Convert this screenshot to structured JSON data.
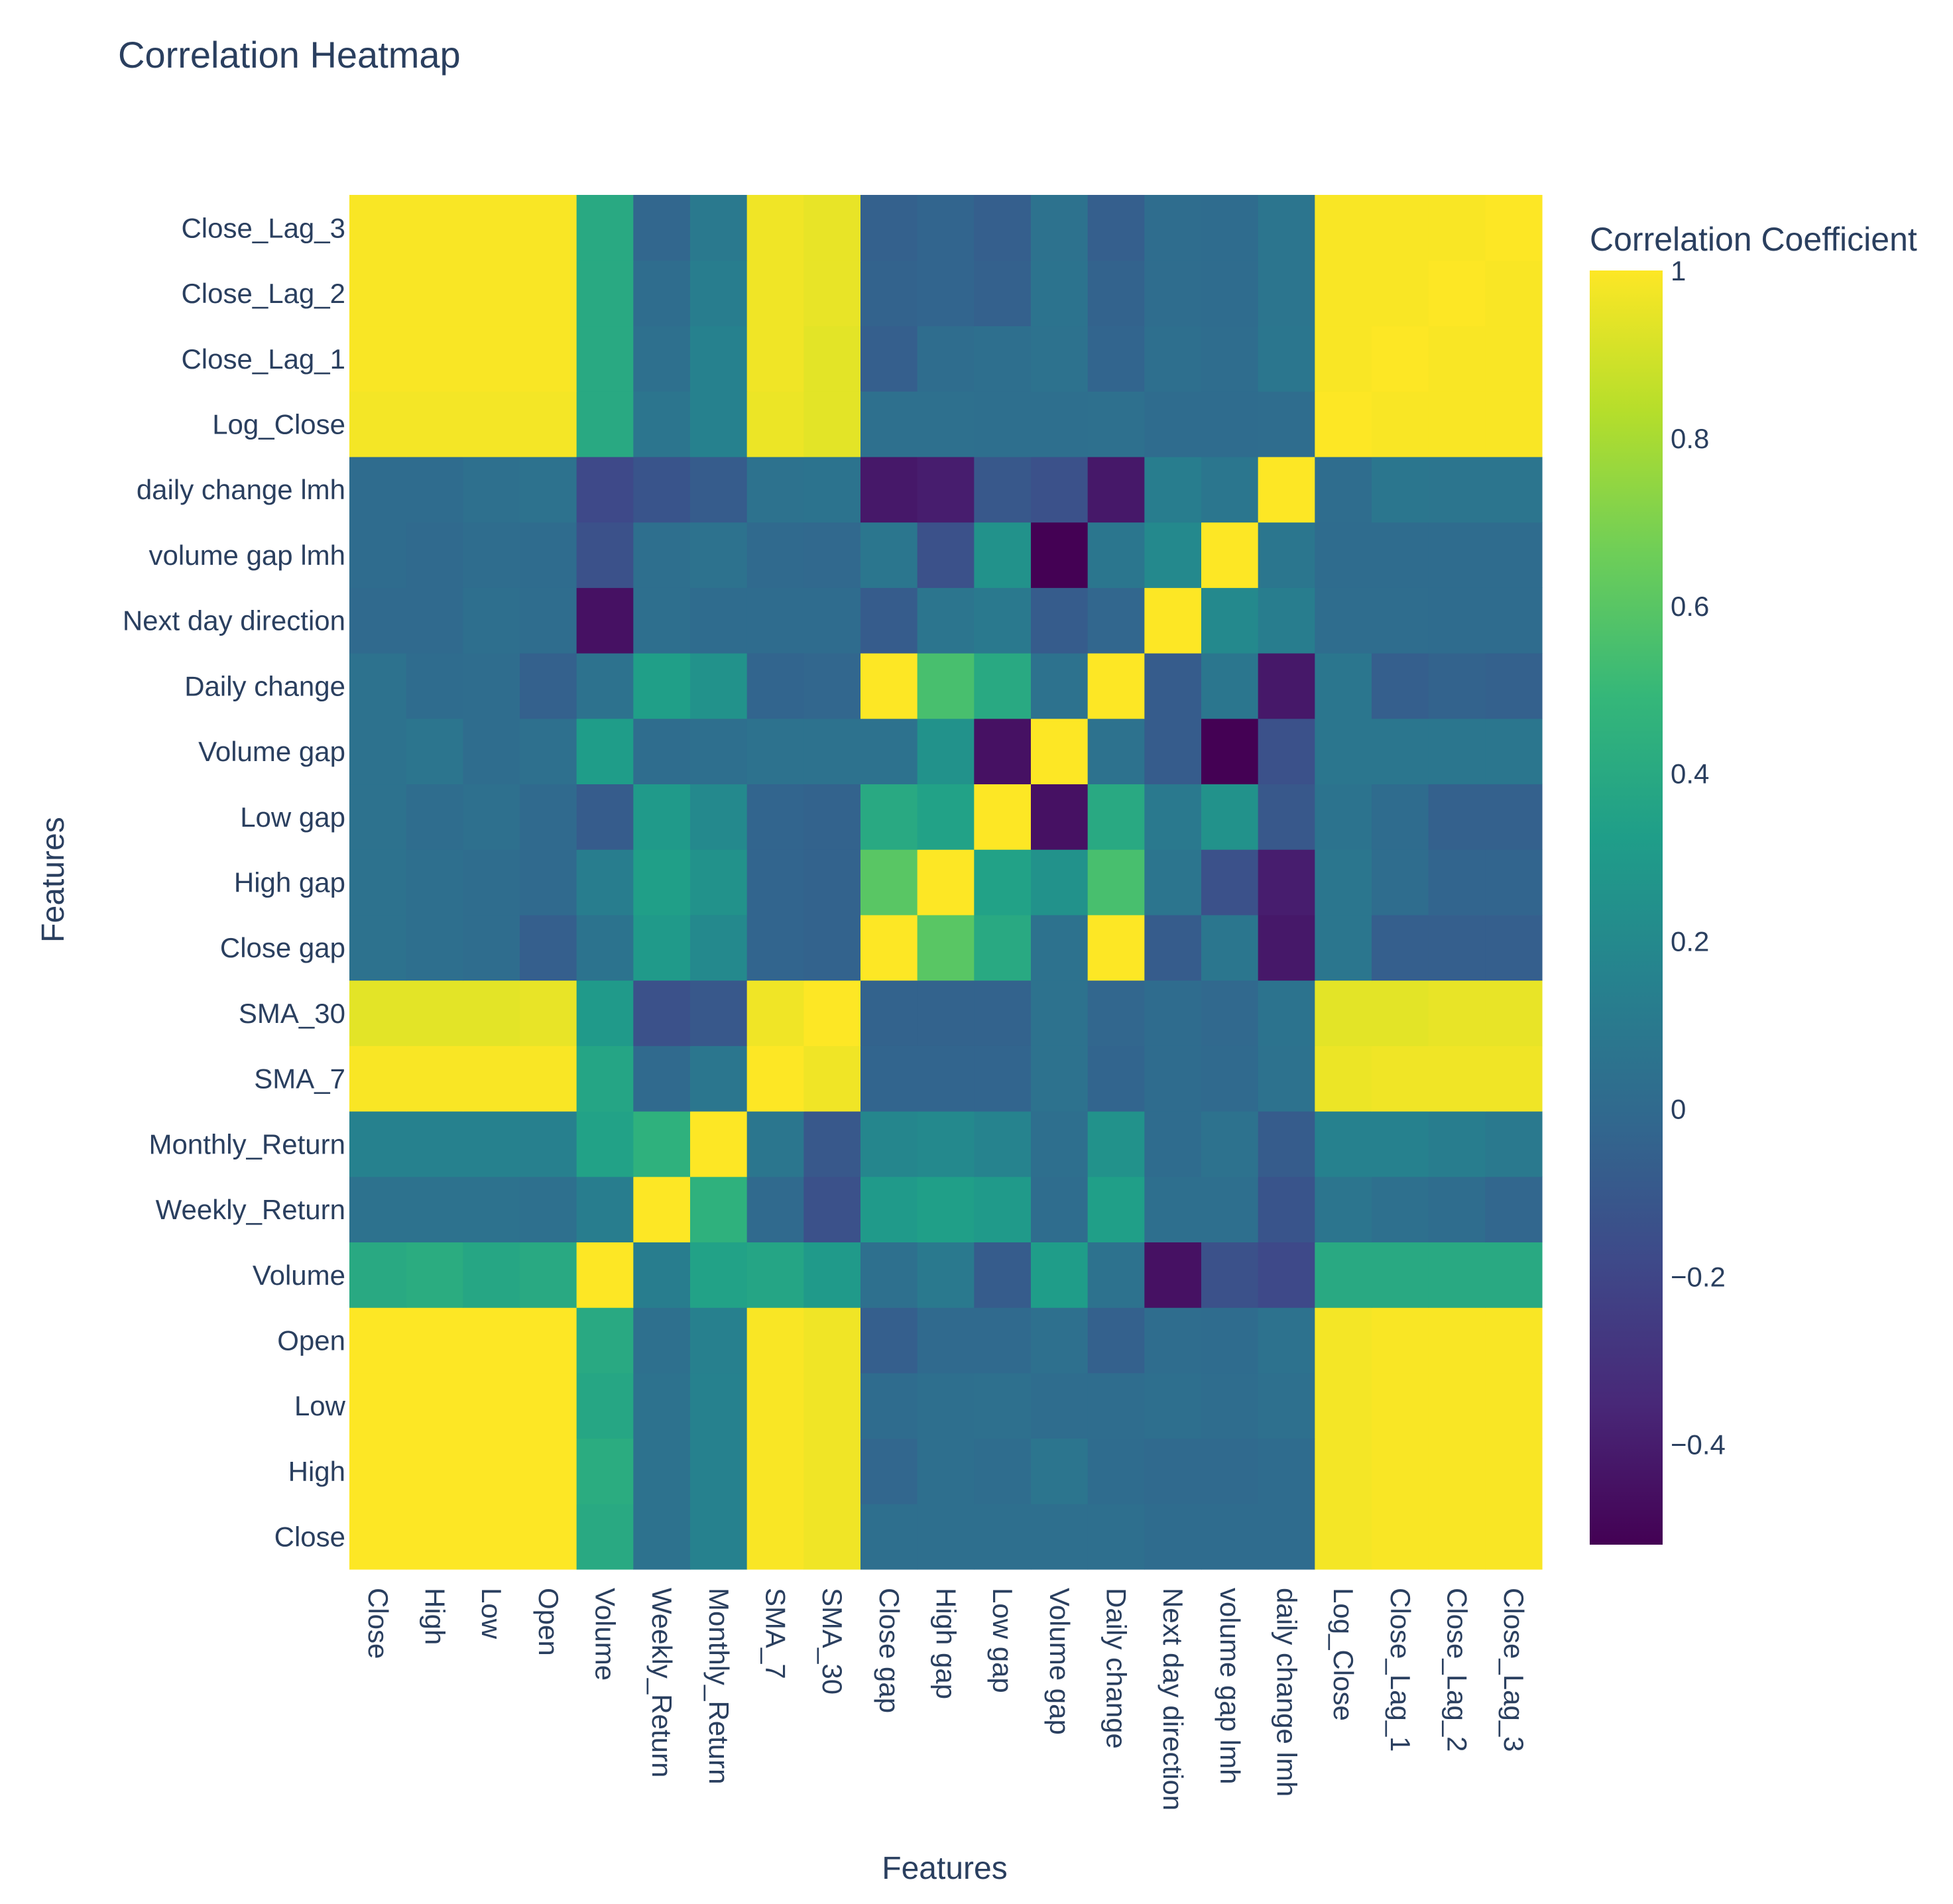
{
  "chart_data": {
    "type": "heatmap",
    "title": "Correlation Heatmap",
    "xlabel": "Features",
    "ylabel": "Features",
    "colorscale_name": "Viridis",
    "colorscale": [
      "#440154",
      "#482878",
      "#3e4989",
      "#31688e",
      "#26828e",
      "#1f9e89",
      "#35b779",
      "#6ece58",
      "#b5de2b",
      "#fde725"
    ],
    "zmin": -0.52,
    "zmax": 1,
    "colorbar": {
      "title": "Correlation Coefficient",
      "ticks": [
        {
          "value": 1,
          "label": "1"
        },
        {
          "value": 0.8,
          "label": "0.8"
        },
        {
          "value": 0.6,
          "label": "0.6"
        },
        {
          "value": 0.4,
          "label": "0.4"
        },
        {
          "value": 0.2,
          "label": "0.2"
        },
        {
          "value": 0,
          "label": "0"
        },
        {
          "value": -0.2,
          "label": "−0.2"
        },
        {
          "value": -0.4,
          "label": "−0.4"
        }
      ]
    },
    "features": [
      "Close",
      "High",
      "Low",
      "Open",
      "Volume",
      "Weekly_Return",
      "Monthly_Return",
      "SMA_7",
      "SMA_30",
      "Close gap",
      "High gap",
      "Low gap",
      "Volume gap",
      "Daily change",
      "Next day direction",
      "volume gap lmh",
      "daily change lmh",
      "Log_Close",
      "Close_Lag_1",
      "Close_Lag_2",
      "Close_Lag_3"
    ],
    "z": [
      [
        1.0,
        1.0,
        1.0,
        1.0,
        0.4,
        0.05,
        0.15,
        0.99,
        0.97,
        0.03,
        0.03,
        0.03,
        0.03,
        0.03,
        0.01,
        0.01,
        0.01,
        0.98,
        0.99,
        0.99,
        0.99
      ],
      [
        1.0,
        1.0,
        1.0,
        1.0,
        0.42,
        0.05,
        0.15,
        0.99,
        0.97,
        -0.02,
        0.03,
        0.02,
        0.07,
        0.01,
        0.0,
        0.0,
        0.01,
        0.98,
        0.99,
        0.99,
        0.99
      ],
      [
        1.0,
        1.0,
        1.0,
        1.0,
        0.38,
        0.05,
        0.15,
        0.99,
        0.97,
        0.01,
        0.03,
        0.04,
        0.02,
        0.02,
        0.03,
        0.02,
        0.04,
        0.98,
        0.99,
        0.99,
        0.99
      ],
      [
        1.0,
        1.0,
        1.0,
        1.0,
        0.4,
        0.04,
        0.14,
        0.99,
        0.97,
        -0.06,
        0.0,
        0.0,
        0.04,
        -0.05,
        0.02,
        0.01,
        0.05,
        0.98,
        0.99,
        0.99,
        0.99
      ],
      [
        0.4,
        0.42,
        0.38,
        0.4,
        1.0,
        0.12,
        0.35,
        0.37,
        0.3,
        0.04,
        0.1,
        -0.08,
        0.32,
        0.05,
        -0.45,
        -0.14,
        -0.18,
        0.4,
        0.4,
        0.4,
        0.4
      ],
      [
        0.05,
        0.05,
        0.05,
        0.04,
        0.12,
        1.0,
        0.45,
        0.0,
        -0.14,
        0.3,
        0.33,
        0.3,
        0.02,
        0.33,
        0.03,
        0.03,
        -0.12,
        0.07,
        0.04,
        0.02,
        -0.02
      ],
      [
        0.15,
        0.15,
        0.15,
        0.14,
        0.35,
        0.45,
        1.0,
        0.08,
        -0.1,
        0.18,
        0.2,
        0.16,
        0.03,
        0.25,
        0.01,
        0.05,
        -0.08,
        0.15,
        0.15,
        0.12,
        0.1
      ],
      [
        0.99,
        0.99,
        0.99,
        0.99,
        0.37,
        0.0,
        0.08,
        1.0,
        0.97,
        -0.03,
        -0.03,
        -0.03,
        0.05,
        -0.03,
        0.01,
        0.0,
        0.05,
        0.96,
        0.97,
        0.97,
        0.97
      ],
      [
        0.94,
        0.94,
        0.94,
        0.95,
        0.3,
        -0.14,
        -0.1,
        0.97,
        1.0,
        -0.04,
        -0.04,
        -0.04,
        0.05,
        -0.02,
        0.01,
        -0.01,
        0.06,
        0.94,
        0.94,
        0.95,
        0.95
      ],
      [
        0.05,
        0.03,
        0.02,
        -0.06,
        0.06,
        0.3,
        0.2,
        -0.03,
        -0.04,
        1.0,
        0.6,
        0.4,
        0.05,
        1.0,
        -0.08,
        0.08,
        -0.42,
        0.08,
        -0.06,
        -0.06,
        -0.06
      ],
      [
        0.05,
        0.03,
        0.02,
        0.0,
        0.12,
        0.33,
        0.25,
        -0.03,
        -0.04,
        0.6,
        1.0,
        0.35,
        0.25,
        0.55,
        0.07,
        -0.14,
        -0.4,
        0.08,
        0.02,
        -0.03,
        -0.03
      ],
      [
        0.05,
        0.02,
        0.04,
        0.0,
        -0.08,
        0.3,
        0.2,
        -0.03,
        -0.04,
        0.4,
        0.35,
        1.0,
        -0.45,
        0.4,
        0.1,
        0.25,
        -0.1,
        0.06,
        0.01,
        -0.05,
        -0.05
      ],
      [
        0.05,
        0.07,
        0.02,
        0.04,
        0.32,
        0.02,
        0.03,
        0.05,
        0.05,
        0.05,
        0.25,
        -0.45,
        1.0,
        0.05,
        -0.08,
        -0.52,
        -0.14,
        0.08,
        0.08,
        0.08,
        0.08
      ],
      [
        0.05,
        0.01,
        0.02,
        -0.05,
        0.05,
        0.33,
        0.25,
        -0.03,
        -0.02,
        1.0,
        0.55,
        0.4,
        0.05,
        1.0,
        -0.08,
        0.08,
        -0.42,
        0.08,
        -0.06,
        -0.04,
        -0.05
      ],
      [
        0.0,
        0.0,
        0.03,
        0.02,
        -0.45,
        0.03,
        0.01,
        0.01,
        0.01,
        -0.08,
        0.07,
        0.1,
        -0.08,
        -0.02,
        1.0,
        0.2,
        0.12,
        0.02,
        0.02,
        0.01,
        0.01
      ],
      [
        0.01,
        0.0,
        0.02,
        0.01,
        -0.14,
        0.03,
        0.05,
        0.0,
        -0.01,
        0.08,
        -0.14,
        0.25,
        -0.52,
        0.08,
        0.2,
        1.0,
        0.08,
        0.01,
        0.01,
        0.01,
        0.01
      ],
      [
        0.01,
        0.01,
        0.04,
        0.05,
        -0.18,
        -0.12,
        -0.08,
        0.05,
        0.06,
        -0.42,
        -0.4,
        -0.1,
        -0.14,
        -0.42,
        0.12,
        0.08,
        1.0,
        0.02,
        0.08,
        0.07,
        0.07
      ],
      [
        0.98,
        0.98,
        0.98,
        0.98,
        0.4,
        0.07,
        0.15,
        0.96,
        0.94,
        0.04,
        0.04,
        0.03,
        0.03,
        0.04,
        0.01,
        0.01,
        0.02,
        1.0,
        0.99,
        0.99,
        0.99
      ],
      [
        0.99,
        0.99,
        0.99,
        0.99,
        0.4,
        0.04,
        0.15,
        0.97,
        0.94,
        -0.06,
        0.02,
        0.03,
        0.05,
        -0.03,
        0.03,
        0.02,
        0.08,
        0.99,
        1.0,
        0.99,
        0.99
      ],
      [
        0.99,
        0.99,
        0.99,
        0.99,
        0.4,
        0.02,
        0.12,
        0.97,
        0.95,
        -0.04,
        -0.03,
        -0.05,
        0.06,
        -0.04,
        0.02,
        0.01,
        0.07,
        0.99,
        0.99,
        1.0,
        0.99
      ],
      [
        0.99,
        0.99,
        0.99,
        0.99,
        0.4,
        -0.02,
        0.1,
        0.97,
        0.95,
        -0.05,
        -0.03,
        -0.06,
        0.05,
        -0.06,
        0.02,
        0.01,
        0.07,
        0.99,
        0.99,
        0.99,
        1.0
      ]
    ]
  }
}
